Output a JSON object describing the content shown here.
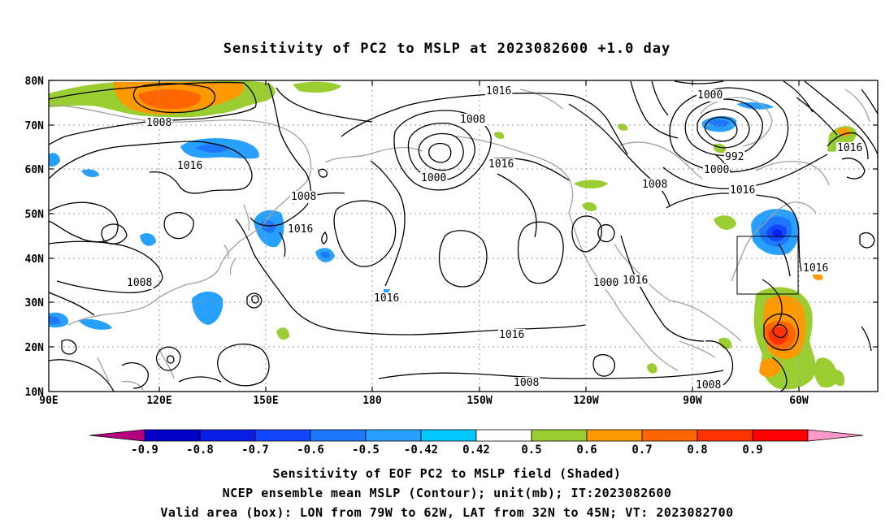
{
  "title": "Sensitivity of PC2 to MSLP at 2023082600 +1.0 day",
  "axes": {
    "lat_labels": [
      "80N",
      "70N",
      "60N",
      "50N",
      "40N",
      "30N",
      "20N",
      "10N"
    ],
    "lon_labels": [
      "90E",
      "120E",
      "150E",
      "180",
      "150W",
      "120W",
      "90W",
      "60W"
    ]
  },
  "valid_box": {
    "lon_from": "79W",
    "lon_to": "62W",
    "lat_from": "32N",
    "lat_to": "45N"
  },
  "contour_labels": [
    "1016",
    "1008",
    "1000",
    "1008",
    "1016",
    "1000",
    "992",
    "1000",
    "1016",
    "1016",
    "1008",
    "1016",
    "1016",
    "1008",
    "1008",
    "1016",
    "1000",
    "1016",
    "1016",
    "1008",
    "1008",
    "1016"
  ],
  "colorbar": {
    "labels": [
      "-0.9",
      "-0.8",
      "-0.7",
      "-0.6",
      "-0.5",
      "-0.42",
      "0.42",
      "0.5",
      "0.6",
      "0.7",
      "0.8",
      "0.9"
    ],
    "colors": [
      "#b5007f",
      "#0000c8",
      "#0a1ee6",
      "#1446ff",
      "#1e78ff",
      "#28a0ff",
      "#00c8ff",
      "#ffffff",
      "#9acd32",
      "#ff9900",
      "#ff6600",
      "#ff3300",
      "#ff0000",
      "#ff99cc"
    ]
  },
  "captions": {
    "line1": "Sensitivity of EOF PC2 to MSLP field (Shaded)",
    "line2": "NCEP ensemble mean MSLP (Contour); unit(mb); IT:2023082600",
    "line3": "Valid area (box): LON from 79W to 62W, LAT from 32N to 45N; VT: 2023082700"
  }
}
